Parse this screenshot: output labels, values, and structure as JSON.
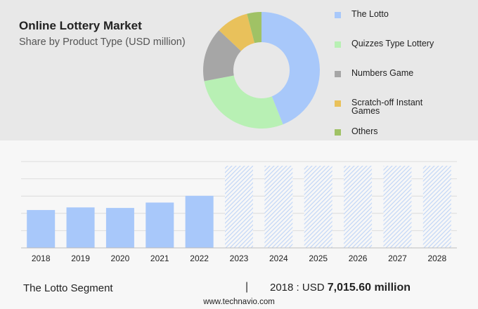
{
  "header": {
    "title": "Online Lottery Market",
    "subtitle": "Share by Product Type (USD million)"
  },
  "chart_data": [
    {
      "type": "pie",
      "variant": "donut",
      "categories": [
        "The Lotto",
        "Quizzes Type Lottery",
        "Numbers Game",
        "Scratch-off Instant Games",
        "Others"
      ],
      "legend_lines": [
        [
          "The Lotto"
        ],
        [
          "Quizzes Type Lottery"
        ],
        [
          "Numbers Game"
        ],
        [
          "Scratch-off Instant",
          "Games"
        ],
        [
          "Others"
        ]
      ],
      "values": [
        44,
        28,
        15,
        9,
        4
      ],
      "colors": [
        "#a8c8fa",
        "#b8f0b4",
        "#a6a6a6",
        "#e9c15b",
        "#a0c265"
      ],
      "legend_position": "right"
    },
    {
      "type": "bar",
      "categories": [
        "2018",
        "2019",
        "2020",
        "2021",
        "2022",
        "2023",
        "2024",
        "2025",
        "2026",
        "2027",
        "2028"
      ],
      "values": [
        7015.6,
        7500,
        7400,
        8400,
        9650,
        null,
        null,
        null,
        null,
        null,
        null
      ],
      "forecast_categories": [
        "2023",
        "2024",
        "2025",
        "2026",
        "2027",
        "2028"
      ],
      "ylim": [
        0,
        16000
      ],
      "grid": true,
      "colors": {
        "actual": "#a8c8fa",
        "forecast_hatch": "#c3d7f7"
      }
    }
  ],
  "footer": {
    "segment_label": "The Lotto Segment",
    "separator": "|",
    "year_label": "2018 : USD",
    "value_label": "7,015.60 million",
    "source": "www.technavio.com"
  }
}
